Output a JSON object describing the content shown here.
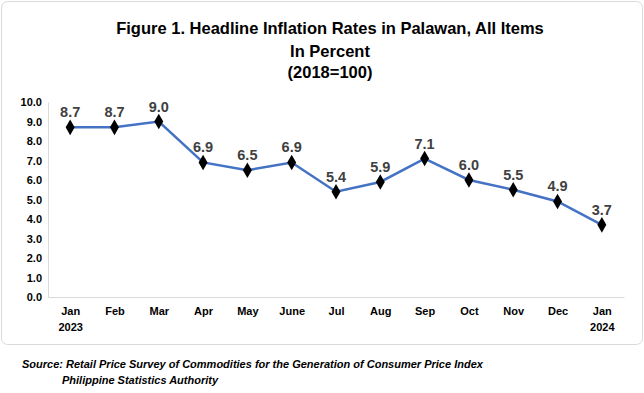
{
  "chart_data": {
    "type": "line",
    "title": "Figure 1. Headline Inflation Rates in Palawan, All Items",
    "subtitle": [
      "In Percent",
      "(2018=100)"
    ],
    "categories": [
      "Jan\n2023",
      "Feb",
      "Mar",
      "Apr",
      "May",
      "June",
      "Jul",
      "Aug",
      "Sep",
      "Oct",
      "Nov",
      "Dec",
      "Jan\n2024"
    ],
    "values": [
      8.7,
      8.7,
      9.0,
      6.9,
      6.5,
      6.9,
      5.4,
      5.9,
      7.1,
      6.0,
      5.5,
      4.9,
      3.7
    ],
    "value_labels": [
      "8.7",
      "8.7",
      "9.0",
      "6.9",
      "6.5",
      "6.9",
      "5.4",
      "5.9",
      "7.1",
      "6.0",
      "5.5",
      "4.9",
      "3.7"
    ],
    "data_labels": true,
    "color": "#4472c4",
    "marker": "diamond",
    "line_style": "solid",
    "grid": false,
    "ylim": [
      0,
      10
    ],
    "yticks": [
      {
        "value": 0,
        "label": "0.0"
      },
      {
        "value": 1,
        "label": "1.0"
      },
      {
        "value": 2,
        "label": "2.0"
      },
      {
        "value": 3,
        "label": "3.0"
      },
      {
        "value": 4,
        "label": "4.0"
      },
      {
        "value": 5,
        "label": "5.0"
      },
      {
        "value": 6,
        "label": "6.0"
      },
      {
        "value": 7,
        "label": "7.0"
      },
      {
        "value": 8,
        "label": "8.0"
      },
      {
        "value": 9,
        "label": "9.0"
      },
      {
        "value": 10,
        "label": "10.0"
      }
    ],
    "source": [
      "Source: Retail Price Survey of Commodities for the Generation of Consumer Price Index",
      "Philippine Statistics Authority"
    ]
  }
}
